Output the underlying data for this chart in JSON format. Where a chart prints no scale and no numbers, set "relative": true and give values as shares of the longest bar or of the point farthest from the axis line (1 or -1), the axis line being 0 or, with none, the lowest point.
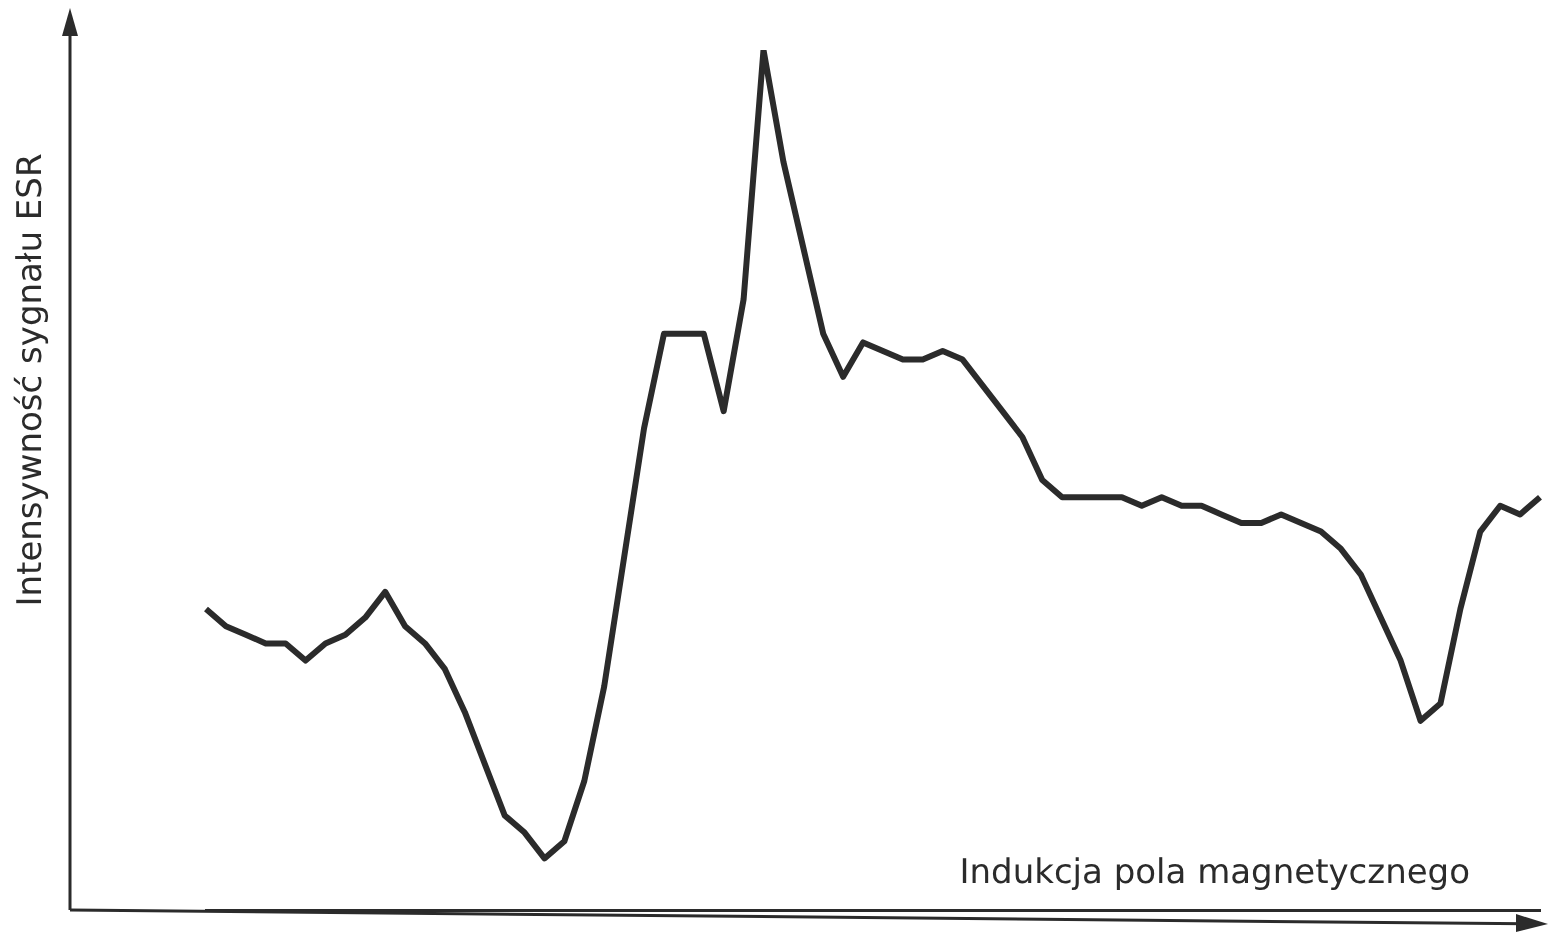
{
  "chart_data": {
    "type": "line",
    "relative": true,
    "xlabel": "Indukcja pola magnetycznego",
    "ylabel": "Intensywność sygnału ESR",
    "color": "#2b2b2b",
    "marker": "none",
    "line_style": "solid",
    "legend": false,
    "categories": [
      null,
      null,
      null,
      null,
      null,
      null,
      null,
      null,
      null,
      null,
      null,
      null,
      null,
      null,
      null,
      null,
      null,
      null,
      null,
      null,
      null,
      null,
      null,
      null,
      null,
      null,
      null,
      null,
      null,
      null,
      null,
      null,
      null,
      null,
      null,
      null,
      null,
      null,
      null,
      null,
      null,
      null,
      null,
      null,
      null,
      null,
      null,
      null,
      null,
      null,
      null,
      null,
      null,
      null,
      null,
      null,
      null,
      null,
      null,
      null,
      null,
      null,
      null,
      null,
      null,
      null,
      null,
      null
    ],
    "values": [
      0.35,
      0.33,
      0.32,
      0.31,
      0.31,
      0.29,
      0.31,
      0.32,
      0.34,
      0.37,
      0.33,
      0.31,
      0.28,
      0.23,
      0.17,
      0.11,
      0.09,
      0.06,
      0.08,
      0.15,
      0.26,
      0.41,
      0.56,
      0.67,
      0.67,
      0.67,
      0.58,
      0.71,
      1,
      0.87,
      0.77,
      0.67,
      0.62,
      0.66,
      0.65,
      0.64,
      0.64,
      0.65,
      0.64,
      0.61,
      0.58,
      0.55,
      0.5,
      0.48,
      0.48,
      0.48,
      0.48,
      0.47,
      0.48,
      0.47,
      0.47,
      0.46,
      0.45,
      0.45,
      0.46,
      0.45,
      0.44,
      0.42,
      0.39,
      0.34,
      0.29,
      0.22,
      0.24,
      0.35,
      0.44,
      0.47,
      0.46,
      0.48
    ]
  }
}
